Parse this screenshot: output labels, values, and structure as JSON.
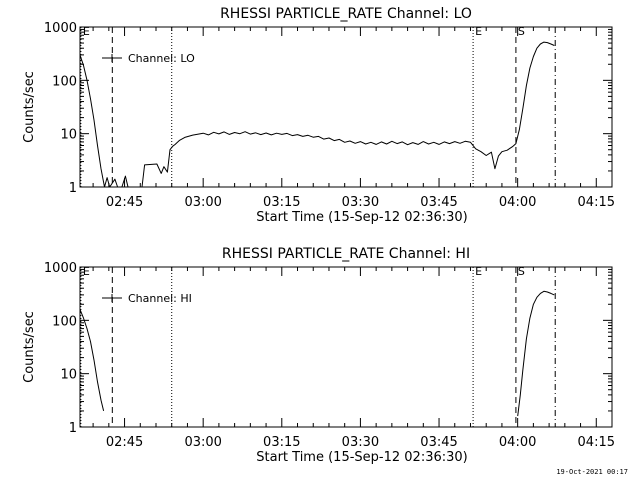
{
  "timestamp": "19-Oct-2021 00:17",
  "chart_data": [
    {
      "type": "line",
      "title": "RHESSI PARTICLE_RATE Channel: LO",
      "xlabel": "Start Time (15-Sep-12 02:36:30)",
      "ylabel": "Counts/sec",
      "y_scale": "log",
      "ylim": [
        1,
        1000
      ],
      "yticks": [
        "1",
        "10",
        "100",
        "1000"
      ],
      "xlim": [
        "02:36:30",
        "04:18:00"
      ],
      "xticks": [
        "02:45",
        "03:00",
        "03:15",
        "03:30",
        "03:45",
        "04:00",
        "04:15"
      ],
      "legend": "Channel: LO",
      "legend_position": "top-left",
      "markers": [
        {
          "label": "E",
          "time": "02:36:40",
          "style": "dotted"
        },
        {
          "label": "",
          "time": "02:42:40",
          "style": "dashed"
        },
        {
          "label": "",
          "time": "02:54:00",
          "style": "dotted"
        },
        {
          "label": "E",
          "time": "03:51:30",
          "style": "dotted"
        },
        {
          "label": "S",
          "time": "03:59:40",
          "style": "dashed"
        },
        {
          "label": "",
          "time": "04:07:10",
          "style": "dashdot"
        }
      ],
      "series": [
        {
          "segments": [
            [
              [
                "02:36:30",
                300
              ],
              [
                "02:37:10",
                190
              ],
              [
                "02:37:50",
                100
              ],
              [
                "02:38:30",
                45
              ],
              [
                "02:39:10",
                18
              ],
              [
                "02:39:50",
                6
              ],
              [
                "02:40:30",
                2.2
              ],
              [
                "02:41:10",
                1
              ],
              [
                "02:41:40",
                1.5
              ],
              [
                "02:42:10",
                1
              ],
              [
                "02:43:10",
                1.4
              ],
              [
                "02:43:40",
                1
              ]
            ],
            [
              [
                "02:44:30",
                1
              ],
              [
                "02:45:10",
                1.6
              ],
              [
                "02:45:40",
                1
              ]
            ],
            [
              [
                "02:48:20",
                1
              ],
              [
                "02:48:50",
                2.6
              ],
              [
                "02:51:10",
                2.7
              ],
              [
                "02:52:00",
                1.8
              ],
              [
                "02:52:30",
                2.4
              ],
              [
                "02:53:10",
                1.9
              ],
              [
                "02:53:40",
                5
              ],
              [
                "02:54:10",
                5.8
              ],
              [
                "02:54:40",
                6.3
              ],
              [
                "02:55:30",
                7.5
              ],
              [
                "02:56:30",
                8.5
              ],
              [
                "02:58:00",
                9.4
              ],
              [
                "03:00:00",
                10.2
              ],
              [
                "03:01:00",
                9.5
              ],
              [
                "03:02:00",
                10.6
              ],
              [
                "03:03:00",
                9.9
              ],
              [
                "03:04:00",
                10.8
              ],
              [
                "03:05:00",
                9.7
              ],
              [
                "03:06:00",
                10.5
              ],
              [
                "03:07:00",
                10
              ],
              [
                "03:08:00",
                10.9
              ],
              [
                "03:09:00",
                9.8
              ],
              [
                "03:10:00",
                10.4
              ],
              [
                "03:11:00",
                9.6
              ],
              [
                "03:12:00",
                10.3
              ],
              [
                "03:13:00",
                9.5
              ],
              [
                "03:14:00",
                10.2
              ],
              [
                "03:15:00",
                9.7
              ],
              [
                "03:16:00",
                10.1
              ],
              [
                "03:17:00",
                9.2
              ],
              [
                "03:18:00",
                9.6
              ],
              [
                "03:19:00",
                8.9
              ],
              [
                "03:20:00",
                9.3
              ],
              [
                "03:21:00",
                8.6
              ],
              [
                "03:22:00",
                8.9
              ],
              [
                "03:23:00",
                7.9
              ],
              [
                "03:24:00",
                8.3
              ],
              [
                "03:25:00",
                7.4
              ],
              [
                "03:26:00",
                7.8
              ],
              [
                "03:27:00",
                6.9
              ],
              [
                "03:28:00",
                7.3
              ],
              [
                "03:29:00",
                6.6
              ],
              [
                "03:30:00",
                7.1
              ],
              [
                "03:31:00",
                6.4
              ],
              [
                "03:32:00",
                6.9
              ],
              [
                "03:33:00",
                6.3
              ],
              [
                "03:34:00",
                7
              ],
              [
                "03:35:00",
                6.4
              ],
              [
                "03:36:00",
                7.2
              ],
              [
                "03:37:00",
                6.5
              ],
              [
                "03:38:00",
                7
              ],
              [
                "03:39:00",
                6.2
              ],
              [
                "03:40:00",
                6.8
              ],
              [
                "03:41:00",
                6.3
              ],
              [
                "03:42:00",
                7.1
              ],
              [
                "03:43:00",
                6.4
              ],
              [
                "03:44:00",
                6.9
              ],
              [
                "03:45:00",
                6.3
              ],
              [
                "03:46:00",
                7
              ],
              [
                "03:47:00",
                6.5
              ],
              [
                "03:48:00",
                7.1
              ],
              [
                "03:49:00",
                6.6
              ],
              [
                "03:50:00",
                7.2
              ],
              [
                "03:51:00",
                6.9
              ],
              [
                "03:52:00",
                5.2
              ],
              [
                "03:53:00",
                4.6
              ],
              [
                "03:54:00",
                3.9
              ],
              [
                "03:55:00",
                4.5
              ],
              [
                "03:55:40",
                2.2
              ],
              [
                "03:56:20",
                3.8
              ],
              [
                "03:57:00",
                4.6
              ],
              [
                "03:58:00",
                4.9
              ],
              [
                "03:59:00",
                5.7
              ],
              [
                "03:59:40",
                6.5
              ],
              [
                "04:00:20",
                12
              ],
              [
                "04:01:00",
                30
              ],
              [
                "04:01:40",
                80
              ],
              [
                "04:02:20",
                170
              ],
              [
                "04:03:00",
                280
              ],
              [
                "04:03:40",
                400
              ],
              [
                "04:04:20",
                480
              ],
              [
                "04:05:00",
                520
              ],
              [
                "04:05:40",
                510
              ],
              [
                "04:06:20",
                480
              ],
              [
                "04:07:00",
                450
              ]
            ]
          ]
        }
      ]
    },
    {
      "type": "line",
      "title": "RHESSI PARTICLE_RATE Channel: HI",
      "xlabel": "Start Time (15-Sep-12 02:36:30)",
      "ylabel": "Counts/sec",
      "y_scale": "log",
      "ylim": [
        1,
        1000
      ],
      "yticks": [
        "1",
        "10",
        "100",
        "1000"
      ],
      "xlim": [
        "02:36:30",
        "04:18:00"
      ],
      "xticks": [
        "02:45",
        "03:00",
        "03:15",
        "03:30",
        "03:45",
        "04:00",
        "04:15"
      ],
      "legend": "Channel: HI",
      "legend_position": "top-left",
      "markers": [
        {
          "label": "E",
          "time": "02:36:40",
          "style": "dotted"
        },
        {
          "label": "",
          "time": "02:42:40",
          "style": "dashed"
        },
        {
          "label": "",
          "time": "02:54:00",
          "style": "dotted"
        },
        {
          "label": "E",
          "time": "03:51:30",
          "style": "dotted"
        },
        {
          "label": "S",
          "time": "03:59:40",
          "style": "dashed"
        },
        {
          "label": "",
          "time": "04:07:10",
          "style": "dashdot"
        }
      ],
      "series": [
        {
          "segments": [
            [
              [
                "02:36:30",
                160
              ],
              [
                "02:37:10",
                110
              ],
              [
                "02:37:50",
                70
              ],
              [
                "02:38:30",
                40
              ],
              [
                "02:39:10",
                18
              ],
              [
                "02:39:50",
                7
              ],
              [
                "02:40:30",
                3.2
              ],
              [
                "02:41:00",
                2
              ]
            ],
            [
              [
                "04:00:00",
                1.6
              ],
              [
                "04:00:30",
                4
              ],
              [
                "04:01:00",
                12
              ],
              [
                "04:01:40",
                45
              ],
              [
                "04:02:20",
                110
              ],
              [
                "04:03:00",
                200
              ],
              [
                "04:03:40",
                270
              ],
              [
                "04:04:20",
                320
              ],
              [
                "04:05:00",
                350
              ],
              [
                "04:05:40",
                340
              ],
              [
                "04:06:20",
                320
              ],
              [
                "04:07:00",
                300
              ]
            ]
          ]
        }
      ]
    }
  ]
}
